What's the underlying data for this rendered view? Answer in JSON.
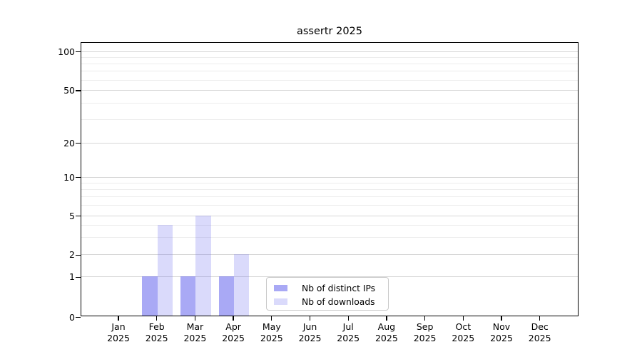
{
  "title": "assertr 2025",
  "colors": {
    "bar_base": "#6666ee",
    "series_dark_fill": "rgba(102,102,238,0.56)",
    "series_light_fill": "rgba(102,102,238,0.24)",
    "grid_major": "#d6d6d6",
    "grid_minor": "#ececec",
    "spine": "#000000",
    "legend_border": "#c9c9c9",
    "background": "#ffffff"
  },
  "chart_data": {
    "type": "bar",
    "title": "assertr 2025",
    "xlabel": "",
    "ylabel": "",
    "categories": [
      "Jan",
      "Feb",
      "Mar",
      "Apr",
      "May",
      "Jun",
      "Jul",
      "Aug",
      "Sep",
      "Oct",
      "Nov",
      "Dec"
    ],
    "year_label": "2025",
    "series": [
      {
        "name": "Nb of distinct IPs",
        "fill": "rgba(102,102,238,0.56)",
        "values": [
          0,
          1,
          1,
          1,
          0,
          0,
          0,
          0,
          0,
          0,
          0,
          0
        ]
      },
      {
        "name": "Nb of downloads",
        "fill": "rgba(102,102,238,0.24)",
        "values": [
          0,
          4,
          5,
          2,
          0,
          0,
          0,
          0,
          0,
          0,
          0,
          0
        ]
      }
    ],
    "y_axis": {
      "scale": "log-like with linear 0-1 segment",
      "ticks": [
        0,
        1,
        2,
        5,
        10,
        20,
        50,
        100
      ],
      "minor_ticks": [
        3,
        4,
        6,
        7,
        8,
        9,
        30,
        40,
        60,
        70,
        80,
        90
      ],
      "range": [
        0,
        100
      ]
    },
    "grid": true,
    "legend": {
      "position": "lower center",
      "entries": [
        "Nb of distinct IPs",
        "Nb of downloads"
      ]
    }
  }
}
